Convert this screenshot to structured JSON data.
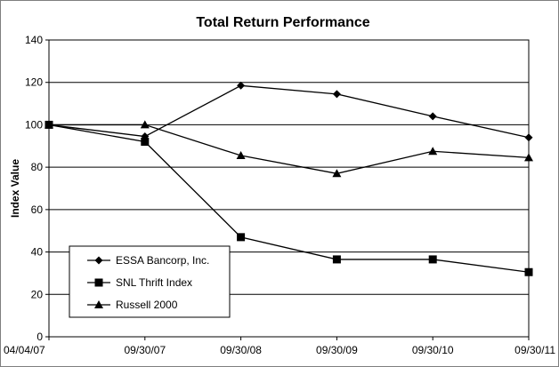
{
  "chart_data": {
    "type": "line",
    "title": "Total Return Performance",
    "xlabel": "",
    "ylabel": "Index Value",
    "categories": [
      "04/04/07",
      "09/30/07",
      "09/30/08",
      "09/30/09",
      "09/30/10",
      "09/30/11"
    ],
    "ylim": [
      0,
      140
    ],
    "yticks": [
      0,
      20,
      40,
      60,
      80,
      100,
      120,
      140
    ],
    "grid": true,
    "legend_position": "bottom-left",
    "series": [
      {
        "name": "ESSA Bancorp, Inc.",
        "marker": "diamond",
        "values": [
          100,
          94.5,
          118.5,
          114.5,
          104,
          94
        ],
        "color": "#000000"
      },
      {
        "name": "SNL Thrift Index",
        "marker": "square",
        "values": [
          100,
          92,
          47,
          36.5,
          36.5,
          30.5
        ],
        "color": "#000000"
      },
      {
        "name": "Russell 2000",
        "marker": "triangle",
        "values": [
          100,
          100,
          85.5,
          77,
          87.5,
          84.5
        ],
        "color": "#000000"
      }
    ]
  }
}
